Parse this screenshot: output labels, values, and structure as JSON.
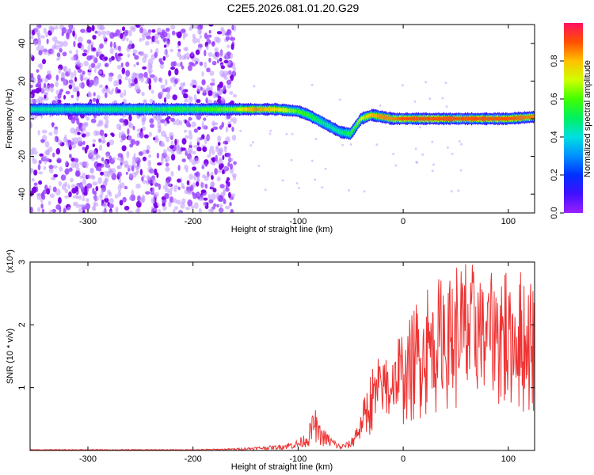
{
  "figure_title": "C2E5.2026.081.01.20.G29",
  "chart_data": [
    {
      "type": "heatmap",
      "title": "C2E5.2026.081.01.20.G29",
      "xlabel": "Height of straight line (km)",
      "ylabel": "Frequency (Hz)",
      "xlim": [
        -355,
        125
      ],
      "ylim": [
        -50,
        50
      ],
      "xticks": [
        -300,
        -200,
        -100,
        0,
        100
      ],
      "yticks": [
        40,
        20,
        0,
        -20,
        -40
      ],
      "colorbar": {
        "label": "Normalized spectral amplitude",
        "range": [
          0,
          1
        ],
        "ticks": [
          0.0,
          0.2,
          0.4,
          0.6,
          0.8
        ]
      },
      "ridge": {
        "height_km": [
          -355,
          -300,
          -250,
          -200,
          -160,
          -140,
          -120,
          -100,
          -90,
          -80,
          -70,
          -60,
          -50,
          -45,
          -40,
          -30,
          -20,
          -10,
          0,
          20,
          50,
          80,
          100,
          125
        ],
        "frequency_hz": [
          5,
          5,
          5,
          5,
          5,
          5,
          5,
          4,
          2,
          -1,
          -4,
          -7,
          -8,
          -4,
          0,
          2,
          1,
          0,
          0,
          0,
          0,
          0,
          0,
          1
        ],
        "amplitude": [
          0.45,
          0.45,
          0.5,
          0.55,
          0.65,
          0.85,
          0.75,
          0.6,
          0.55,
          0.5,
          0.45,
          0.45,
          0.55,
          0.6,
          0.7,
          0.8,
          0.85,
          0.85,
          0.9,
          0.9,
          0.9,
          0.9,
          0.9,
          0.85
        ]
      },
      "noise_region_km": [
        -355,
        -160
      ]
    },
    {
      "type": "line",
      "title": "",
      "xlabel": "Height of straight line (km)",
      "ylabel": "SNR (10 * v/v)",
      "y_multiplier": "(x10⁴)",
      "xlim": [
        -355,
        125
      ],
      "ylim": [
        0,
        3
      ],
      "xticks": [
        -300,
        -200,
        -100,
        0,
        100
      ],
      "yticks": [
        3,
        2,
        1
      ],
      "color": "#ee3333",
      "series": [
        {
          "name": "SNR",
          "x": [
            -355,
            -300,
            -200,
            -160,
            -120,
            -100,
            -90,
            -85,
            -80,
            -70,
            -60,
            -50,
            -40,
            -30,
            -20,
            -10,
            0,
            10,
            20,
            30,
            40,
            50,
            60,
            70,
            80,
            90,
            100,
            110,
            125
          ],
          "y": [
            0.01,
            0.01,
            0.01,
            0.02,
            0.05,
            0.1,
            0.2,
            0.45,
            0.25,
            0.15,
            0.05,
            0.1,
            0.4,
            0.8,
            1.0,
            1.1,
            1.2,
            1.4,
            1.6,
            1.7,
            1.8,
            1.85,
            1.9,
            1.9,
            1.85,
            1.9,
            1.8,
            1.75,
            1.7
          ]
        }
      ]
    }
  ]
}
